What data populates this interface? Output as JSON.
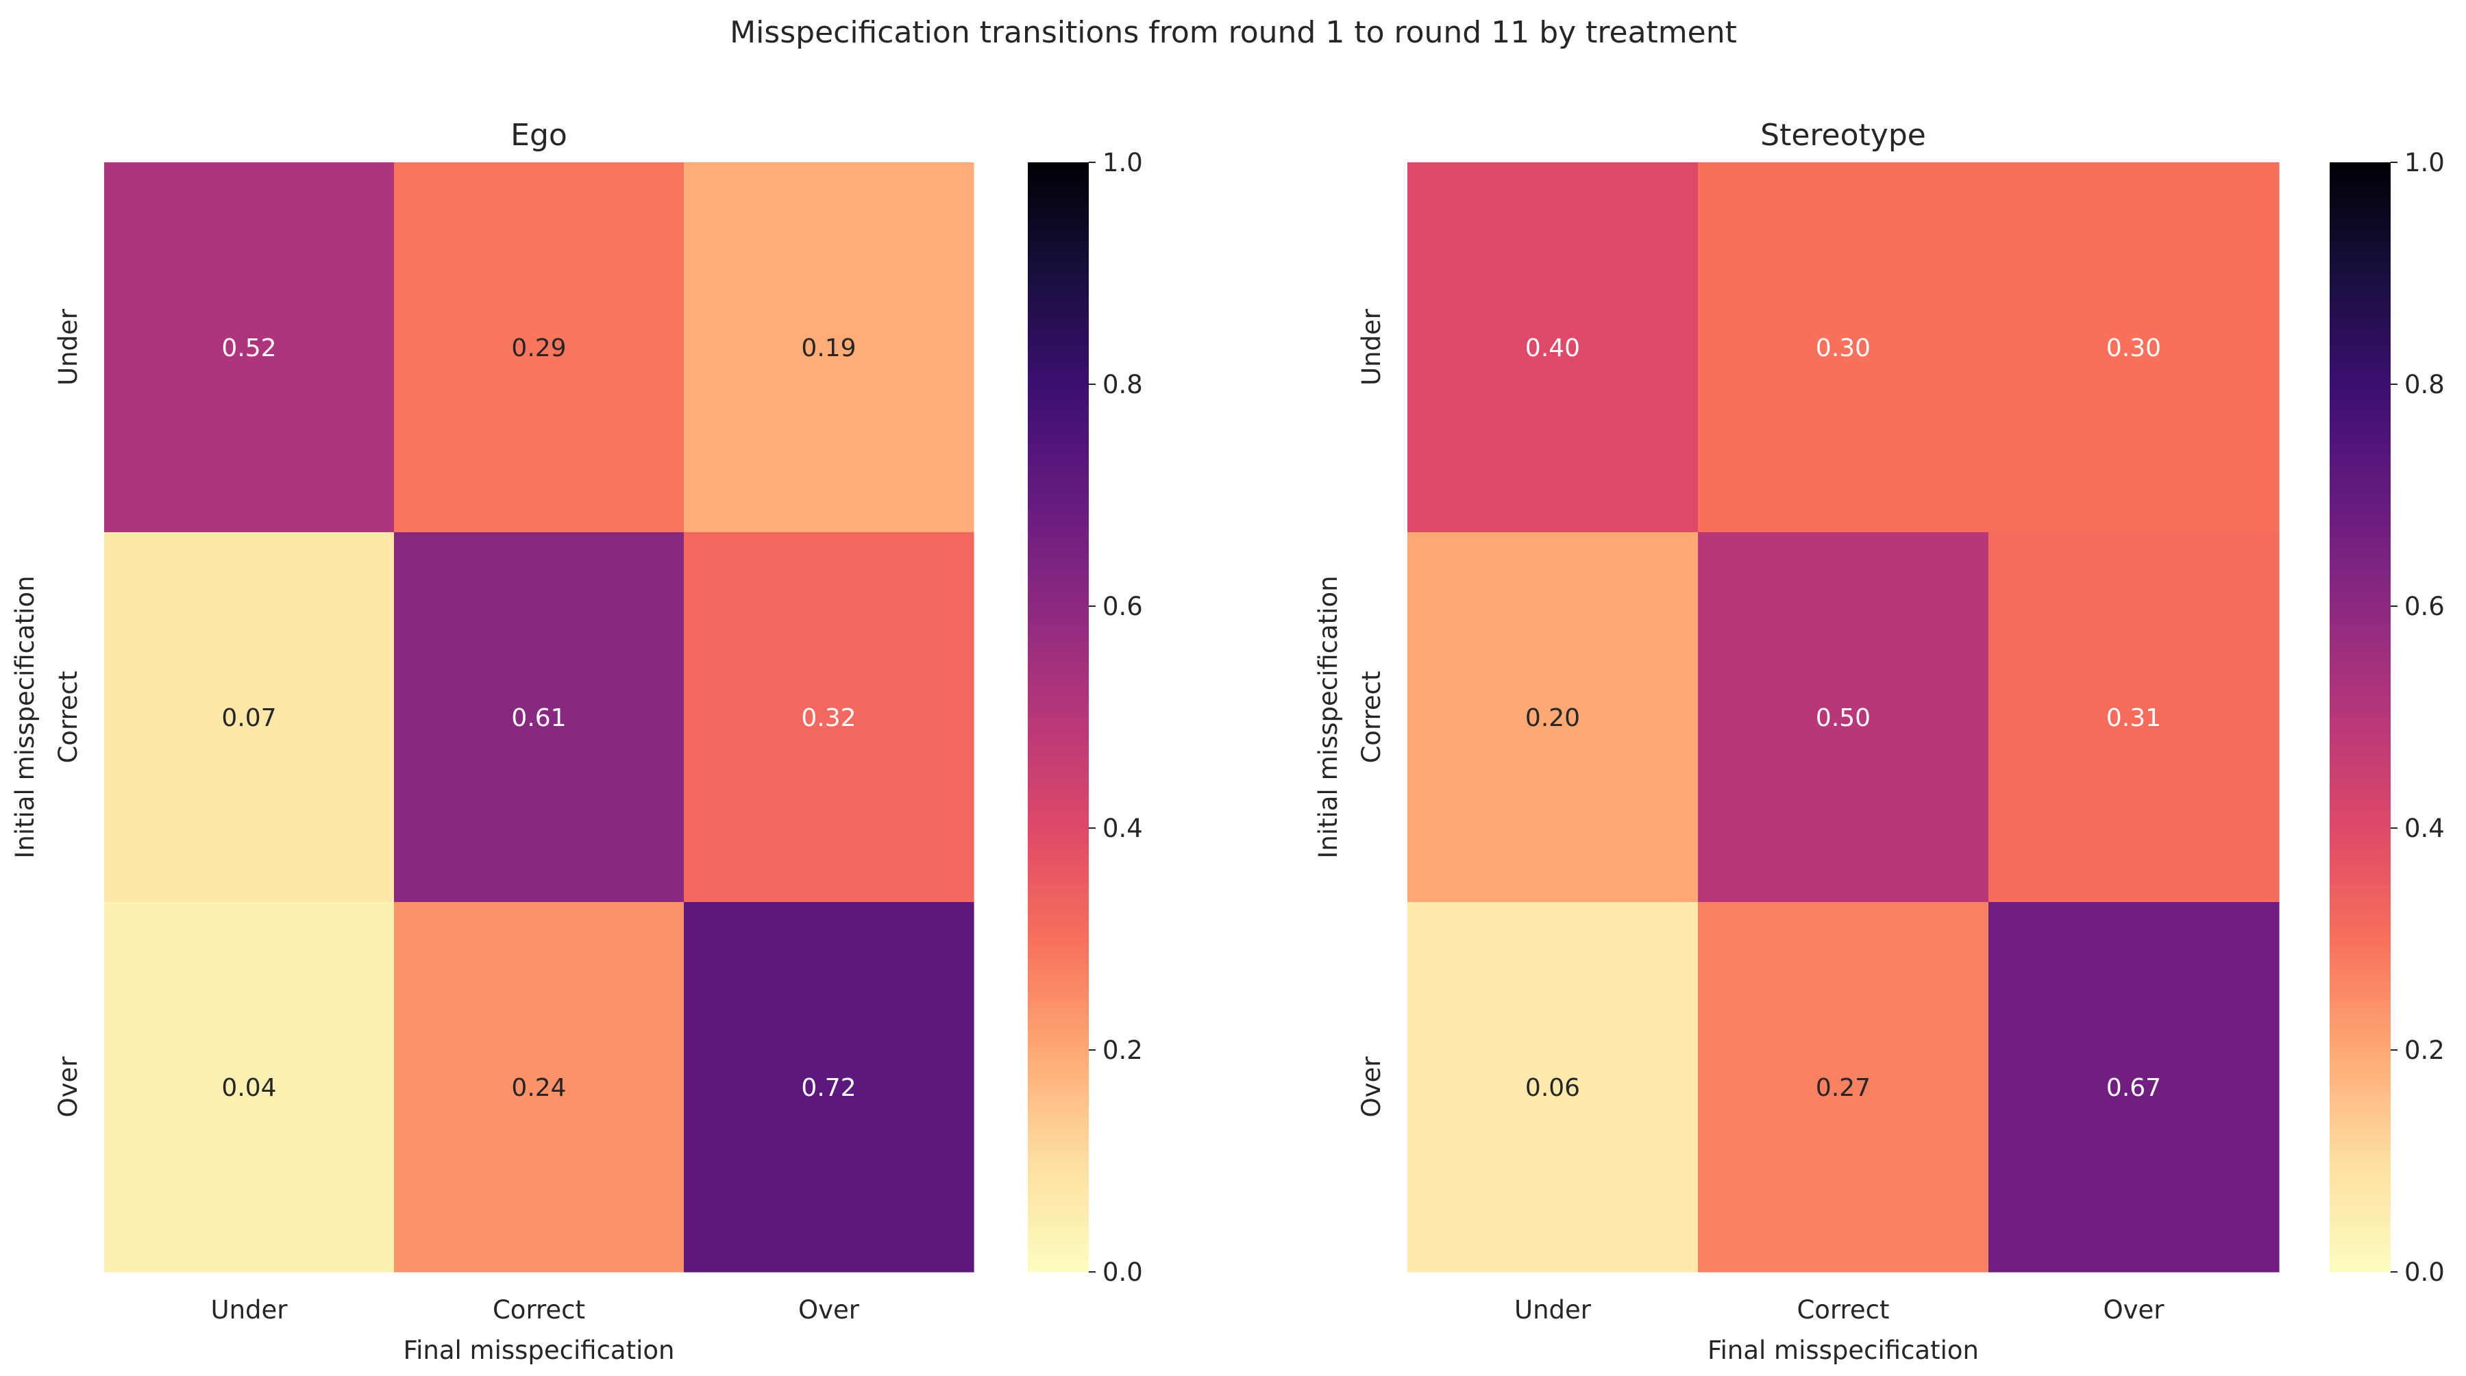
{
  "figure": {
    "title": "Misspecification transitions from round 1 to round 11 by treatment"
  },
  "colormap": {
    "name": "magma_r",
    "stops": [
      {
        "v": 0.0,
        "color": "#fcfdbf"
      },
      {
        "v": 0.1,
        "color": "#fddea0"
      },
      {
        "v": 0.2,
        "color": "#fea873"
      },
      {
        "v": 0.3,
        "color": "#f7705c"
      },
      {
        "v": 0.4,
        "color": "#de4968"
      },
      {
        "v": 0.5,
        "color": "#b73779"
      },
      {
        "v": 0.6,
        "color": "#8c2981"
      },
      {
        "v": 0.7,
        "color": "#641a80"
      },
      {
        "v": 0.8,
        "color": "#3b0f70"
      },
      {
        "v": 0.9,
        "color": "#180f3d"
      },
      {
        "v": 1.0,
        "color": "#000004"
      }
    ]
  },
  "chart_data": [
    {
      "type": "heatmap",
      "title": "Ego",
      "xlabel": "Final misspecification",
      "ylabel": "Initial misspecification",
      "x_categories": [
        "Under",
        "Correct",
        "Over"
      ],
      "y_categories": [
        "Under",
        "Correct",
        "Over"
      ],
      "values": [
        [
          0.52,
          0.29,
          0.19
        ],
        [
          0.07,
          0.61,
          0.32
        ],
        [
          0.04,
          0.24,
          0.72
        ]
      ],
      "value_labels": [
        [
          "0.52",
          "0.29",
          "0.19"
        ],
        [
          "0.07",
          "0.61",
          "0.32"
        ],
        [
          "0.04",
          "0.24",
          "0.72"
        ]
      ],
      "colorbar": {
        "vmin": 0.0,
        "vmax": 1.0,
        "ticks": [
          "0.0",
          "0.2",
          "0.4",
          "0.6",
          "0.8",
          "1.0"
        ]
      }
    },
    {
      "type": "heatmap",
      "title": "Stereotype",
      "xlabel": "Final misspecification",
      "ylabel": "Initial misspecification",
      "x_categories": [
        "Under",
        "Correct",
        "Over"
      ],
      "y_categories": [
        "Under",
        "Correct",
        "Over"
      ],
      "values": [
        [
          0.4,
          0.3,
          0.3
        ],
        [
          0.2,
          0.5,
          0.31
        ],
        [
          0.06,
          0.27,
          0.67
        ]
      ],
      "value_labels": [
        [
          "0.40",
          "0.30",
          "0.30"
        ],
        [
          "0.20",
          "0.50",
          "0.31"
        ],
        [
          "0.06",
          "0.27",
          "0.67"
        ]
      ],
      "colorbar": {
        "vmin": 0.0,
        "vmax": 1.0,
        "ticks": [
          "0.0",
          "0.2",
          "0.4",
          "0.6",
          "0.8",
          "1.0"
        ]
      }
    }
  ]
}
